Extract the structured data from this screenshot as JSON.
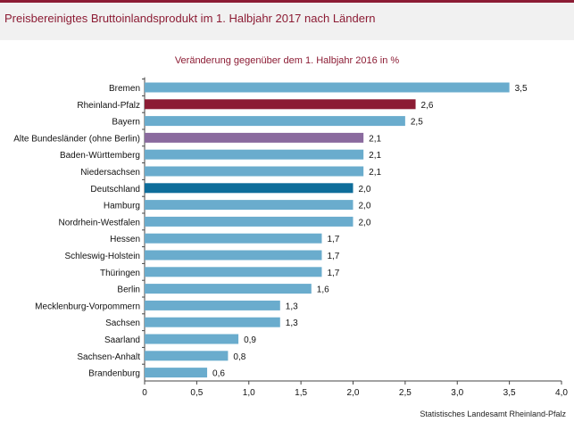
{
  "header": {
    "title": "Preisbereinigtes Bruttoinlandsprodukt im 1. Halbjahr 2017 nach Ländern"
  },
  "footer": {
    "source": "Statistisches Landesamt Rheinland-Pfalz"
  },
  "colors": {
    "brand": "#8c1c34",
    "default_bar": "#6aaccd",
    "highlight_rlp": "#8c1c34",
    "highlight_alte": "#8a6a9e",
    "highlight_de": "#0e6d9a"
  },
  "chart_data": {
    "type": "bar",
    "orientation": "horizontal",
    "title": "Veränderung gegenüber dem 1. Halbjahr 2016 in %",
    "xlim": [
      0,
      4
    ],
    "xticks": [
      0,
      0.5,
      1,
      1.5,
      2,
      2.5,
      3,
      3.5,
      4
    ],
    "xtick_labels": [
      "0",
      "0,5",
      "1,0",
      "1,5",
      "2,0",
      "2,5",
      "3,0",
      "3,5",
      "4,0"
    ],
    "categories": [
      "Bremen",
      "Rheinland-Pfalz",
      "Bayern",
      "Alte Bundesländer (ohne Berlin)",
      "Baden-Württemberg",
      "Niedersachsen",
      "Deutschland",
      "Hamburg",
      "Nordrhein-Westfalen",
      "Hessen",
      "Schleswig-Holstein",
      "Thüringen",
      "Berlin",
      "Mecklenburg-Vorpommern",
      "Sachsen",
      "Saarland",
      "Sachsen-Anhalt",
      "Brandenburg"
    ],
    "values": [
      3.5,
      2.6,
      2.5,
      2.1,
      2.1,
      2.1,
      2.0,
      2.0,
      2.0,
      1.7,
      1.7,
      1.7,
      1.6,
      1.3,
      1.3,
      0.9,
      0.8,
      0.6
    ],
    "value_labels": [
      "3,5",
      "2,6",
      "2,5",
      "2,1",
      "2,1",
      "2,1",
      "2,0",
      "2,0",
      "2,0",
      "1,7",
      "1,7",
      "1,7",
      "1,6",
      "1,3",
      "1,3",
      "0,9",
      "0,8",
      "0,6"
    ],
    "bar_colors": [
      "#6aaccd",
      "#8c1c34",
      "#6aaccd",
      "#8a6a9e",
      "#6aaccd",
      "#6aaccd",
      "#0e6d9a",
      "#6aaccd",
      "#6aaccd",
      "#6aaccd",
      "#6aaccd",
      "#6aaccd",
      "#6aaccd",
      "#6aaccd",
      "#6aaccd",
      "#6aaccd",
      "#6aaccd",
      "#6aaccd"
    ],
    "grid": false
  }
}
